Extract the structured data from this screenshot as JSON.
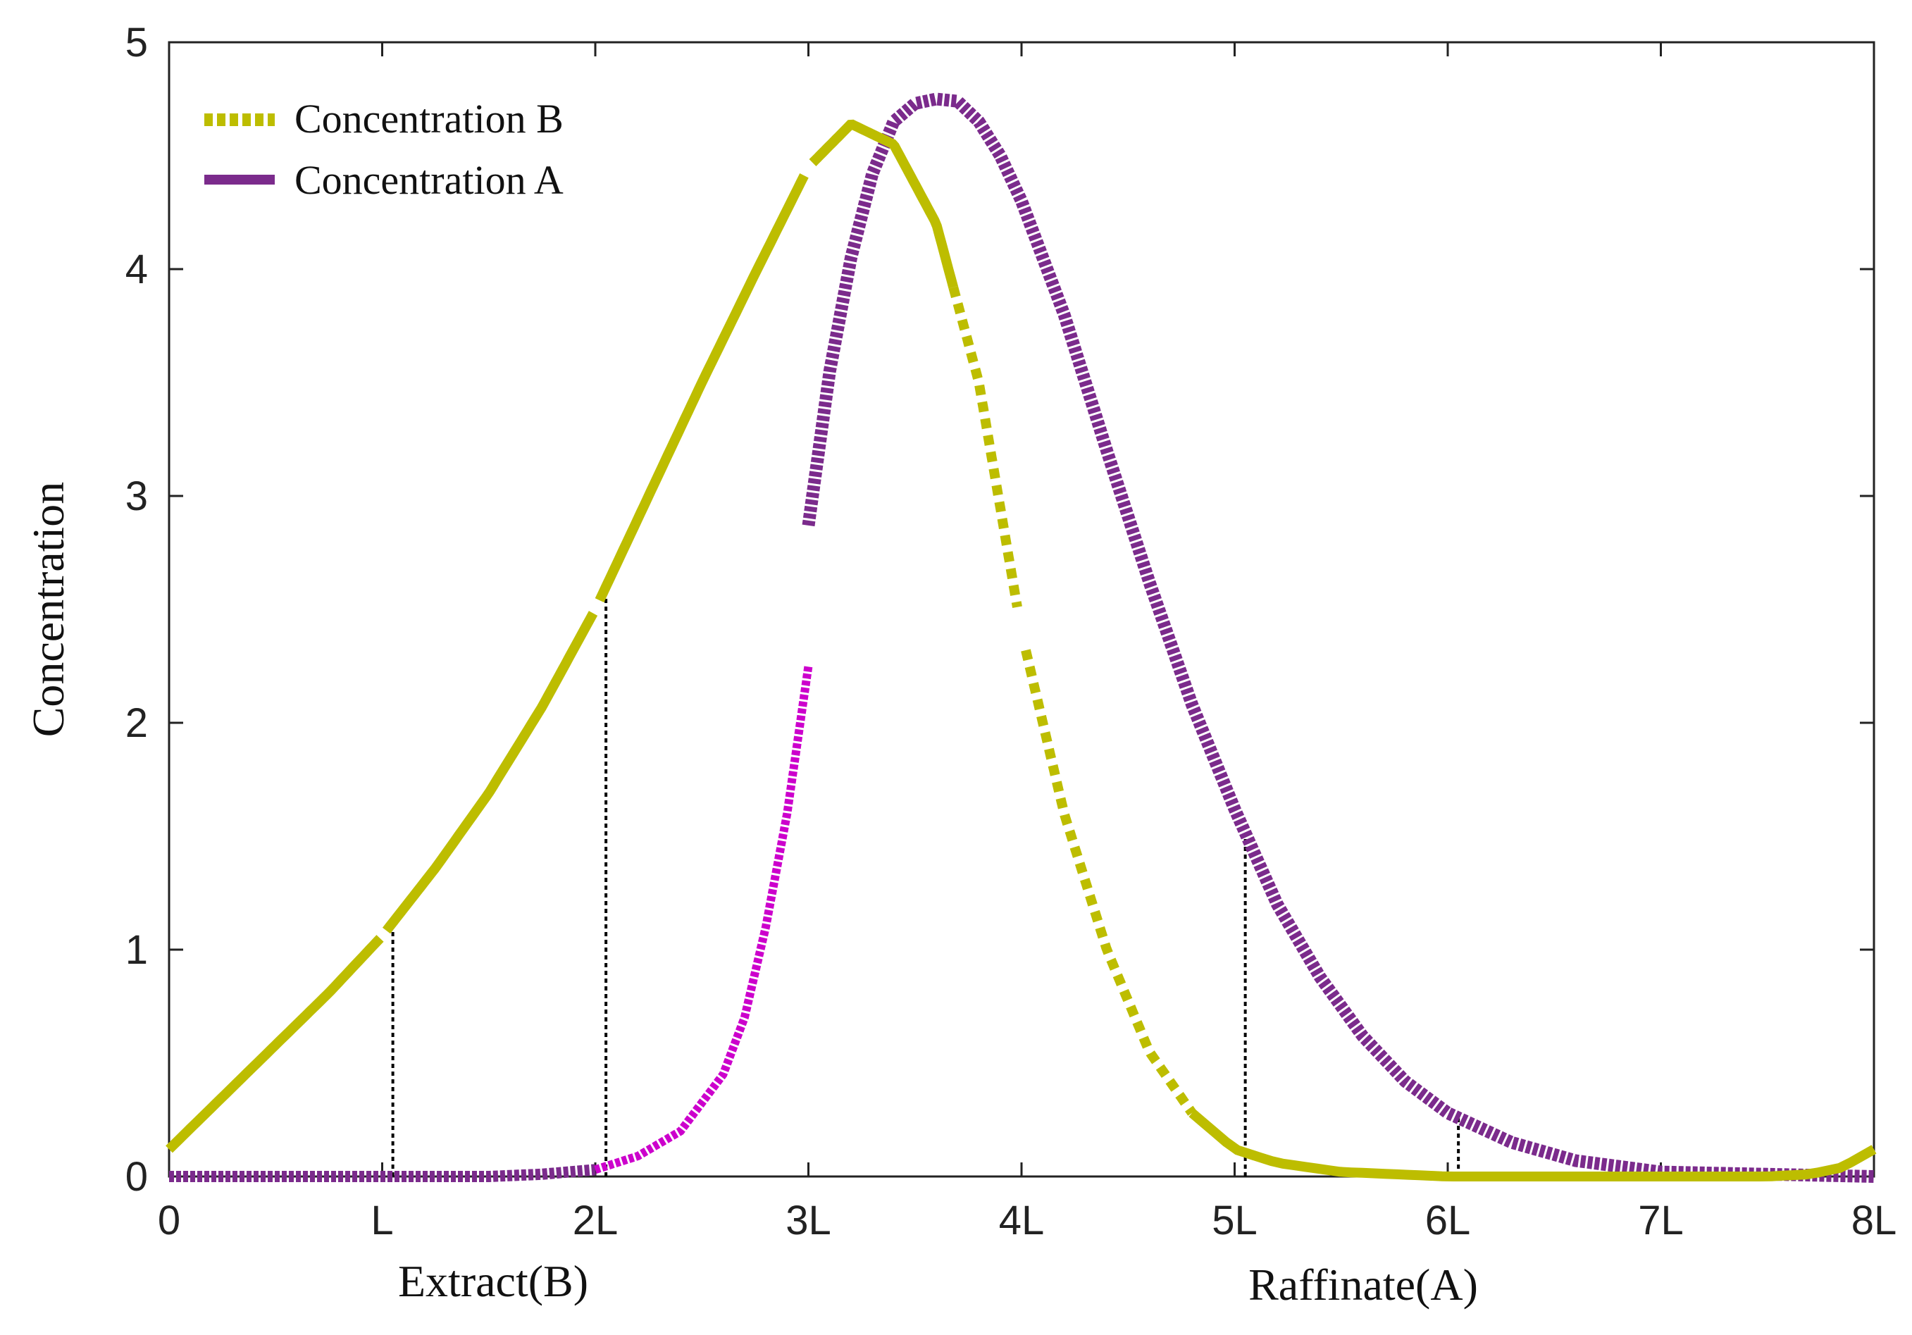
{
  "chart_data": {
    "type": "line",
    "title": "",
    "ylabel": "Concentration",
    "xlabel": "",
    "x_section_labels": [
      "Extract(B)",
      "Raffinate(A)"
    ],
    "xlim": [
      0,
      8
    ],
    "ylim": [
      0,
      5
    ],
    "xticks": [
      0,
      1,
      2,
      3,
      4,
      5,
      6,
      7,
      8
    ],
    "xtick_labels": [
      "0",
      "L",
      "2L",
      "3L",
      "4L",
      "5L",
      "6L",
      "7L",
      "8L"
    ],
    "yticks": [
      0,
      1,
      2,
      3,
      4,
      5
    ],
    "ytick_labels": [
      "0",
      "1",
      "2",
      "3",
      "4",
      "5"
    ],
    "legend": {
      "placement": "top-left",
      "entries": [
        "Concentration B",
        "Concentration A"
      ]
    },
    "colors": {
      "B": "#bdbd00",
      "A": "#7b2b8c",
      "A_highlight": "#cc00cc",
      "markers": "#000000"
    },
    "series": [
      {
        "name": "Concentration B",
        "style": "dotted",
        "color": "#bdbd00",
        "x": [
          0,
          0.25,
          0.5,
          0.75,
          1.0,
          1.25,
          1.5,
          1.75,
          2.0,
          2.25,
          2.5,
          2.75,
          3.0,
          3.2,
          3.4,
          3.6,
          3.8,
          4.0,
          4.2,
          4.4,
          4.6,
          4.8,
          5.0,
          5.2,
          5.5,
          6.0,
          6.5,
          7.0,
          7.5,
          7.7,
          7.85,
          8.0
        ],
        "y": [
          0.12,
          0.35,
          0.58,
          0.81,
          1.06,
          1.36,
          1.69,
          2.07,
          2.5,
          3.0,
          3.5,
          3.98,
          4.45,
          4.64,
          4.55,
          4.2,
          3.5,
          2.4,
          1.6,
          1.0,
          0.55,
          0.28,
          0.12,
          0.06,
          0.02,
          0.0,
          0.0,
          0.0,
          0.0,
          0.01,
          0.04,
          0.12
        ]
      },
      {
        "name": "Concentration A",
        "style": "solid-star",
        "color": "#7b2b8c",
        "x": [
          0,
          0.5,
          1.0,
          1.5,
          1.75,
          2.0,
          2.2,
          2.4,
          2.6,
          2.7,
          2.8,
          2.9,
          3.0,
          3.0,
          3.1,
          3.2,
          3.3,
          3.4,
          3.5,
          3.6,
          3.7,
          3.8,
          3.9,
          4.0,
          4.2,
          4.4,
          4.6,
          4.8,
          5.0,
          5.2,
          5.4,
          5.6,
          5.8,
          6.0,
          6.3,
          6.6,
          7.0,
          7.5,
          8.0
        ],
        "y": [
          0,
          0,
          0,
          0,
          0.01,
          0.03,
          0.09,
          0.2,
          0.45,
          0.7,
          1.1,
          1.6,
          2.25,
          2.87,
          3.55,
          4.05,
          4.42,
          4.65,
          4.73,
          4.75,
          4.74,
          4.65,
          4.5,
          4.3,
          3.8,
          3.2,
          2.62,
          2.08,
          1.62,
          1.2,
          0.88,
          0.62,
          0.42,
          0.28,
          0.15,
          0.07,
          0.02,
          0.01,
          0.0
        ]
      }
    ],
    "reference_lines_x": [
      1.05,
      2.05,
      5.05,
      6.05
    ]
  }
}
